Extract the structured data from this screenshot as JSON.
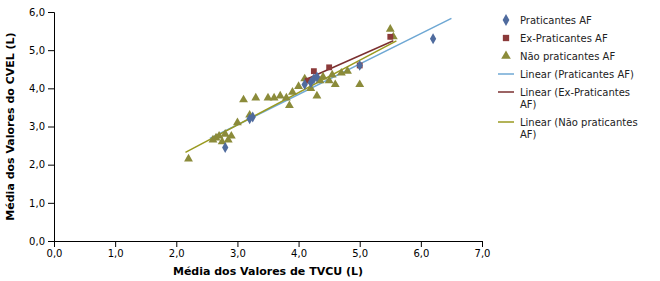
{
  "chart_data": {
    "type": "scatter",
    "xlabel": "Média dos Valores de TVCU (L)",
    "ylabel": "Média dos Valores do CVEL (L)",
    "xlim": [
      0.0,
      7.0
    ],
    "ylim": [
      0.0,
      6.0
    ],
    "xticks": [
      {
        "value": 0.0,
        "label": "0,0"
      },
      {
        "value": 1.0,
        "label": "1,0"
      },
      {
        "value": 2.0,
        "label": "2,0"
      },
      {
        "value": 3.0,
        "label": "3,0"
      },
      {
        "value": 4.0,
        "label": "4,0"
      },
      {
        "value": 5.0,
        "label": "5,0"
      },
      {
        "value": 6.0,
        "label": "6,0"
      },
      {
        "value": 7.0,
        "label": "7,0"
      }
    ],
    "yticks": [
      {
        "value": 0.0,
        "label": "0,0"
      },
      {
        "value": 1.0,
        "label": "1,0"
      },
      {
        "value": 2.0,
        "label": "2,0"
      },
      {
        "value": 3.0,
        "label": "3,0"
      },
      {
        "value": 4.0,
        "label": "4,0"
      },
      {
        "value": 5.0,
        "label": "5,0"
      },
      {
        "value": 6.0,
        "label": "6,0"
      }
    ],
    "grid": false,
    "legend": "right",
    "series": [
      {
        "name": "Praticantes AF",
        "type": "scatter",
        "marker": "diamond",
        "color": "#4f6b9e",
        "x": [
          2.8,
          3.2,
          3.25,
          4.1,
          4.2,
          4.25,
          4.3,
          5.0,
          6.2
        ],
        "values": [
          2.45,
          3.2,
          3.25,
          4.1,
          4.15,
          4.25,
          4.3,
          4.6,
          5.3
        ]
      },
      {
        "name": "Ex-Praticantes AF",
        "type": "scatter",
        "marker": "square",
        "color": "#8b3a3a",
        "x": [
          4.15,
          4.25,
          4.5,
          5.0,
          5.5
        ],
        "values": [
          4.2,
          4.45,
          4.55,
          4.6,
          5.35
        ]
      },
      {
        "name": "Não praticantes AF",
        "type": "scatter",
        "marker": "triangle",
        "color": "#8b8b3a",
        "x": [
          2.2,
          2.6,
          2.65,
          2.7,
          2.75,
          2.8,
          2.85,
          2.9,
          3.0,
          3.1,
          3.2,
          3.3,
          3.5,
          3.6,
          3.7,
          3.8,
          3.85,
          3.9,
          4.0,
          4.1,
          4.2,
          4.3,
          4.35,
          4.4,
          4.5,
          4.55,
          4.6,
          4.7,
          4.8,
          5.0,
          5.5,
          5.55
        ],
        "values": [
          2.15,
          2.65,
          2.7,
          2.75,
          2.6,
          2.8,
          2.65,
          2.75,
          3.1,
          3.7,
          3.3,
          3.75,
          3.75,
          3.75,
          3.8,
          3.75,
          3.55,
          3.9,
          4.05,
          4.25,
          4.0,
          3.8,
          4.2,
          4.3,
          4.2,
          4.35,
          4.1,
          4.4,
          4.45,
          4.1,
          5.55,
          5.35
        ]
      },
      {
        "name": "Linear (Praticantes AF)",
        "type": "line",
        "line_style": "solid",
        "color": "#6fa8d4",
        "x": [
          2.55,
          6.5
        ],
        "values": [
          2.6847,
          5.8331
        ]
      },
      {
        "name": "Linear (Ex-Praticantes\nAF)",
        "type": "line",
        "line_style": "solid",
        "color": "#7b3030",
        "x": [
          4.1,
          5.55
        ],
        "values": [
          4.2197,
          5.2454
        ]
      },
      {
        "name": "Linear (Não praticantes\nAF)",
        "type": "line",
        "line_style": "solid",
        "color": "#9a9a20",
        "x": [
          2.15,
          5.6
        ],
        "values": [
          2.3225,
          5.2453
        ]
      }
    ]
  }
}
